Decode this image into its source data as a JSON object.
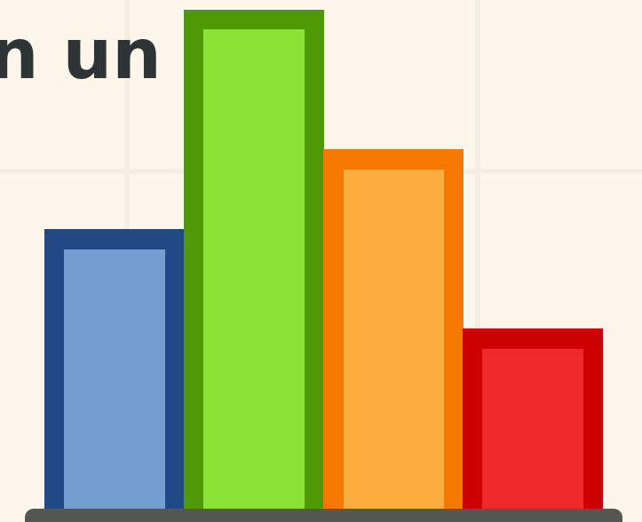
{
  "text": "n un"
}
